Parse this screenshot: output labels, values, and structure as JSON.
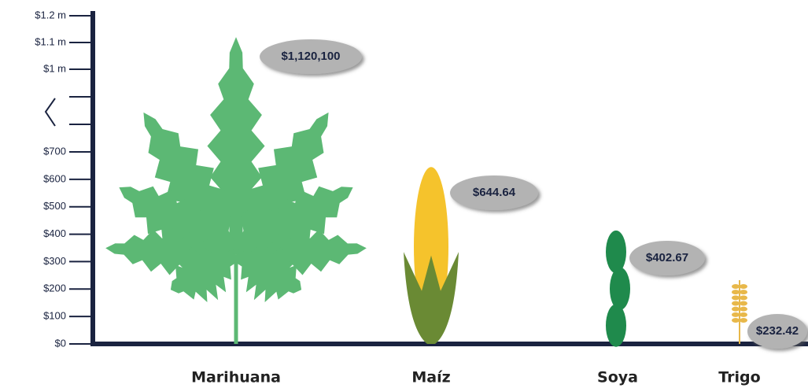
{
  "chart_data": {
    "type": "pictograph",
    "categories": [
      "Marihuana",
      "Maíz",
      "Soya",
      "Trigo"
    ],
    "values": [
      1120100,
      644.64,
      402.67,
      232.42
    ],
    "value_labels": [
      "$1,120,100",
      "$644.64",
      "$402.67",
      "$232.42"
    ],
    "colors": [
      "#5cb874",
      "#f5c32c",
      "#1f8a4c",
      "#e8b84a"
    ],
    "ylim": [
      0,
      1200000
    ],
    "ybreak": [
      700,
      1000000
    ],
    "yticks": [
      {
        "value": 0,
        "label": "$0"
      },
      {
        "value": 100,
        "label": "$100"
      },
      {
        "value": 200,
        "label": "$200"
      },
      {
        "value": 300,
        "label": "$300"
      },
      {
        "value": 400,
        "label": "$400"
      },
      {
        "value": 500,
        "label": "$500"
      },
      {
        "value": 600,
        "label": "$600"
      },
      {
        "value": 700,
        "label": "$700"
      },
      {
        "value": 1000000,
        "label": "$1 m"
      },
      {
        "value": 1100000,
        "label": "$1.1 m"
      },
      {
        "value": 1200000,
        "label": "$1.2 m"
      }
    ]
  }
}
